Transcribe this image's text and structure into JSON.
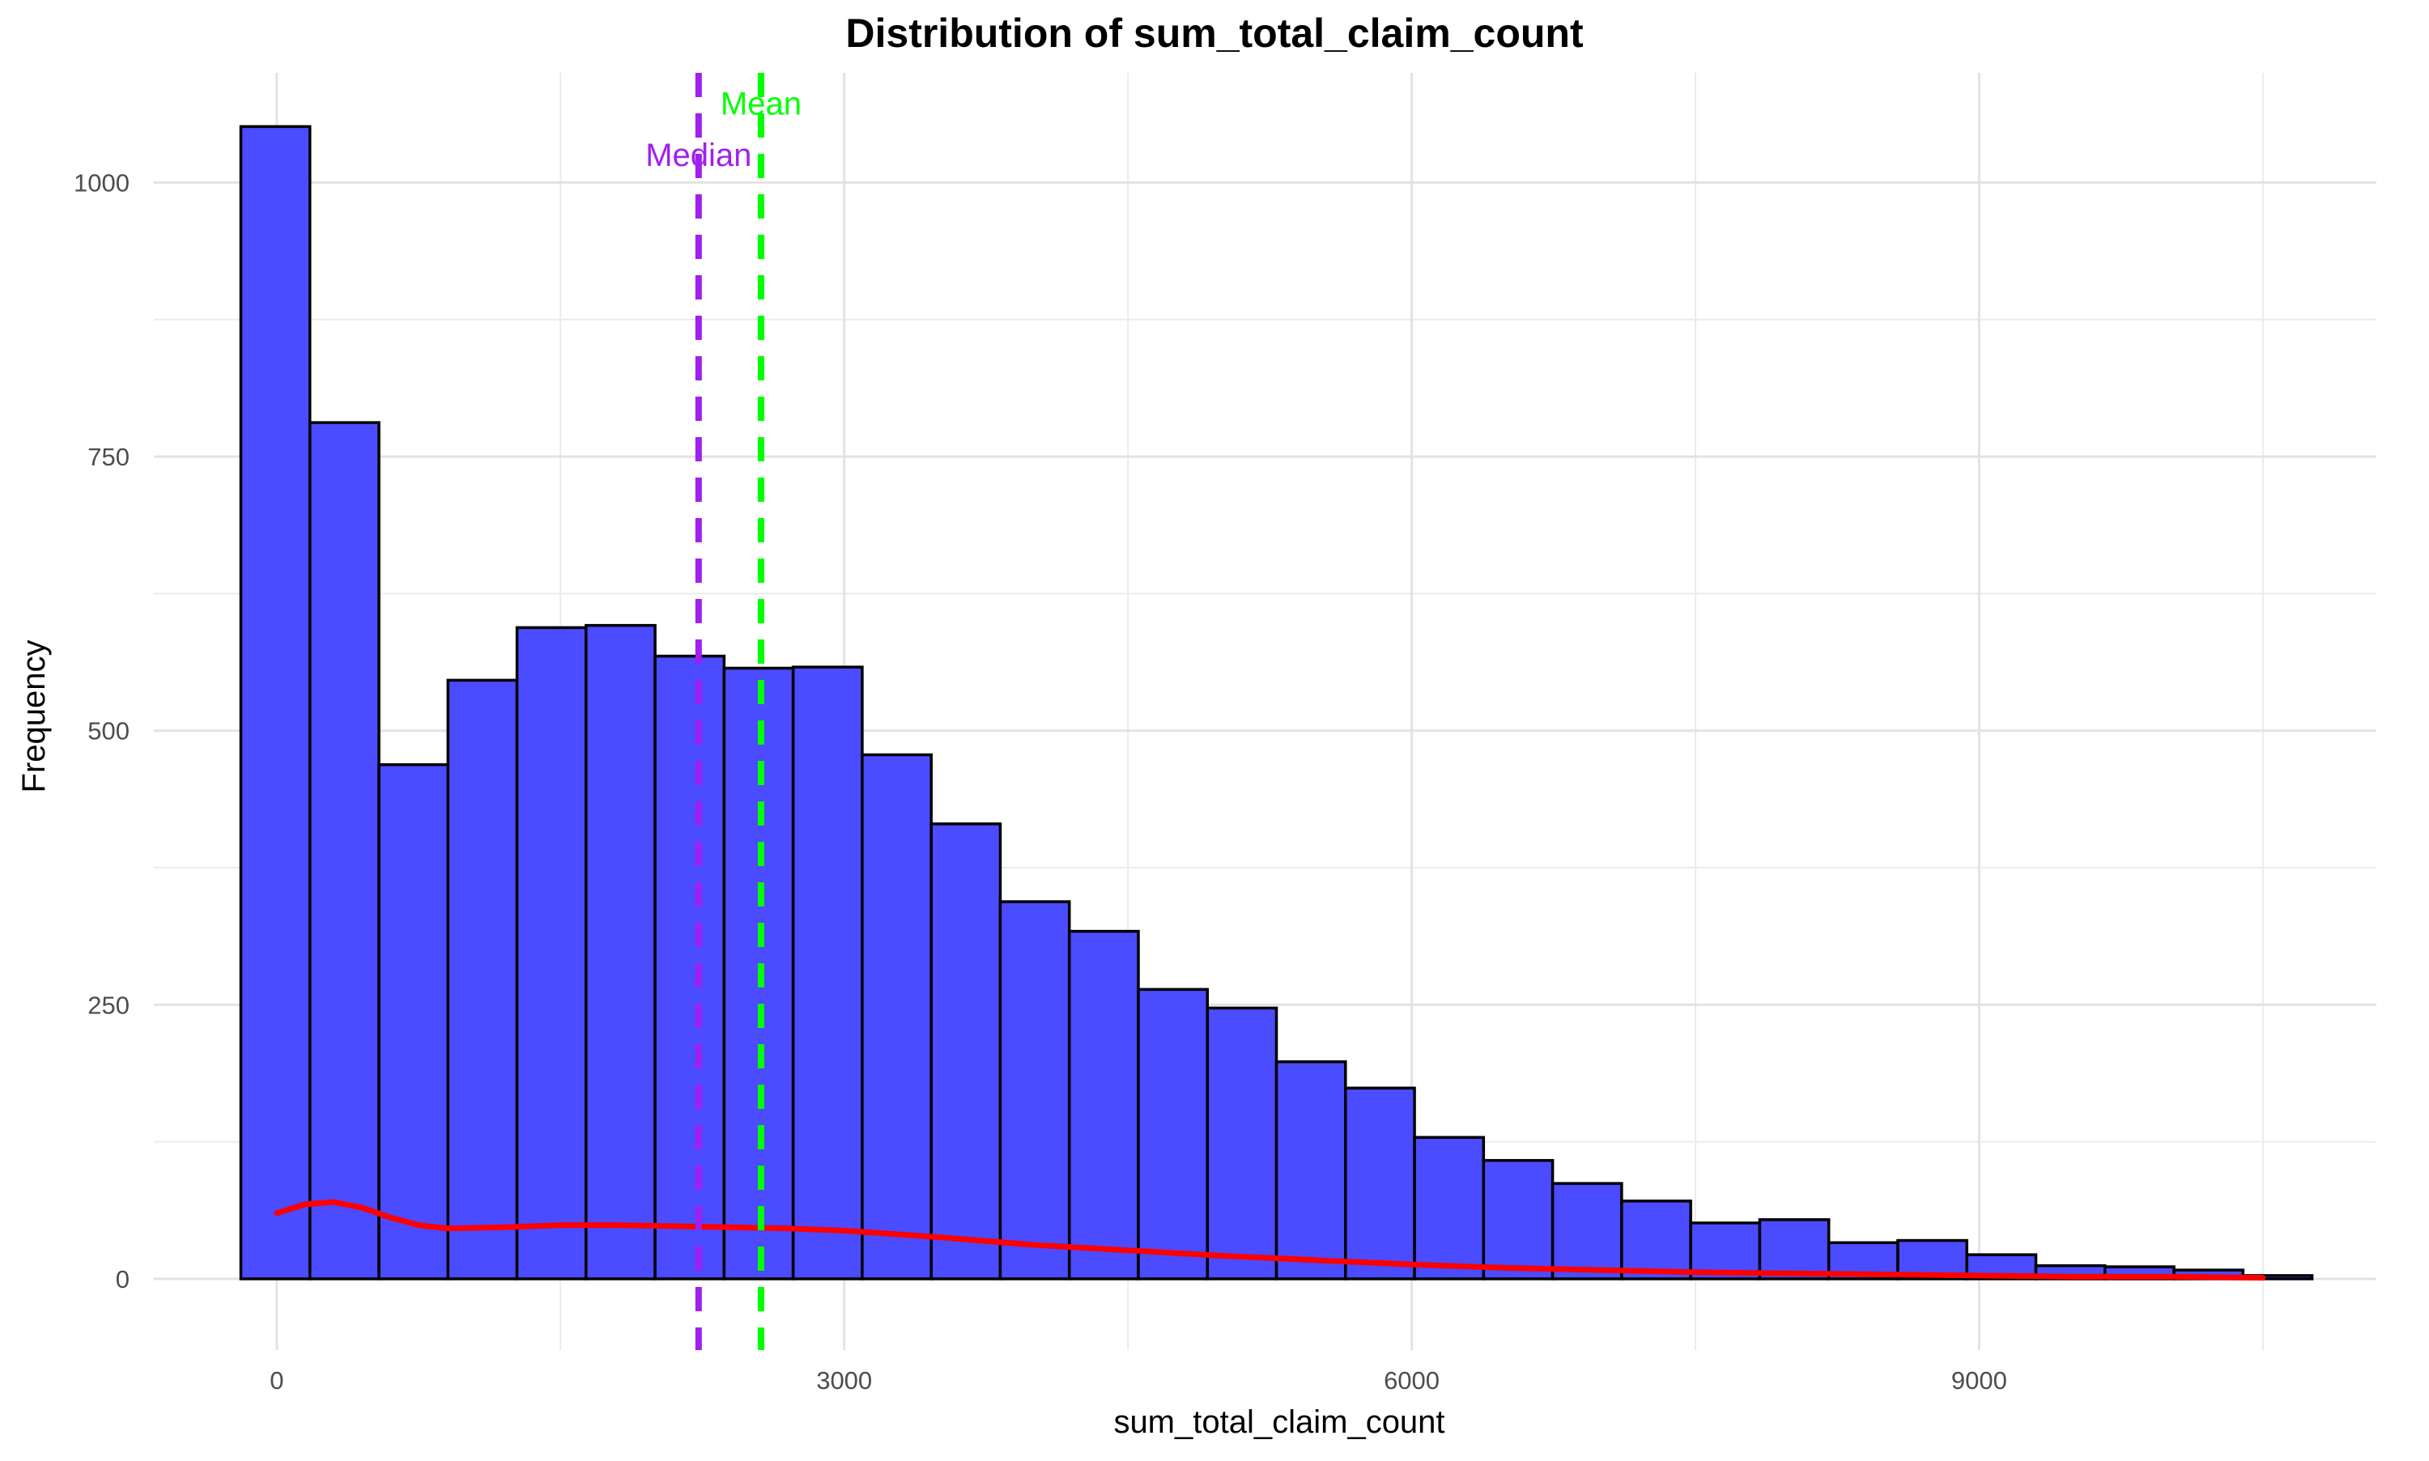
{
  "chart_data": {
    "type": "bar",
    "title": "Distribution of sum_total_claim_count",
    "xlabel": "sum_total_claim_count",
    "ylabel": "Frequency",
    "xlim": [
      -650,
      11100
    ],
    "ylim": [
      -65,
      1100
    ],
    "x_ticks": [
      0,
      3000,
      6000,
      9000
    ],
    "x_tick_labels": [
      "0",
      "3000",
      "6000",
      "9000"
    ],
    "y_ticks": [
      0,
      250,
      500,
      750,
      1000
    ],
    "y_tick_labels": [
      "0",
      "250",
      "500",
      "750",
      "1000"
    ],
    "grid": true,
    "bar_fill": "#4b4bff",
    "bar_outline": "#000000",
    "bins": {
      "edges": [
        -190,
        175,
        540,
        905,
        1270,
        1635,
        2000,
        2365,
        2730,
        3095,
        3460,
        3825,
        4190,
        4555,
        4920,
        5285,
        5650,
        6015,
        6380,
        6745,
        7110,
        7475,
        7840,
        8205,
        8570,
        8935,
        9300,
        9665,
        10030,
        10395,
        10760
      ],
      "counts": [
        1051,
        781,
        469,
        546,
        594,
        596,
        568,
        557,
        558,
        478,
        415,
        344,
        317,
        264,
        247,
        198,
        174,
        129,
        108,
        87,
        71,
        51,
        54,
        33,
        35,
        22,
        12,
        11,
        8,
        3
      ]
    },
    "density_curve": {
      "name": "density",
      "color": "#ff0000",
      "x": [
        0,
        150,
        300,
        450,
        600,
        750,
        900,
        1200,
        1500,
        1800,
        2100,
        2400,
        2700,
        3000,
        3500,
        4000,
        4500,
        5000,
        5500,
        6000,
        6500,
        7000,
        7500,
        8000,
        8500,
        9000,
        9500,
        10000,
        10500
      ],
      "y": [
        60,
        68,
        70,
        65,
        56,
        49,
        46,
        47,
        49,
        49,
        48,
        47,
        46,
        44,
        38,
        31,
        26,
        21,
        17,
        13,
        10,
        8,
        6,
        5,
        4,
        3,
        2,
        2,
        1
      ]
    },
    "reference_lines": [
      {
        "label": "Median",
        "x": 2230,
        "color": "#a020f0"
      },
      {
        "label": "Mean",
        "x": 2560,
        "color": "#00ff00"
      }
    ]
  }
}
